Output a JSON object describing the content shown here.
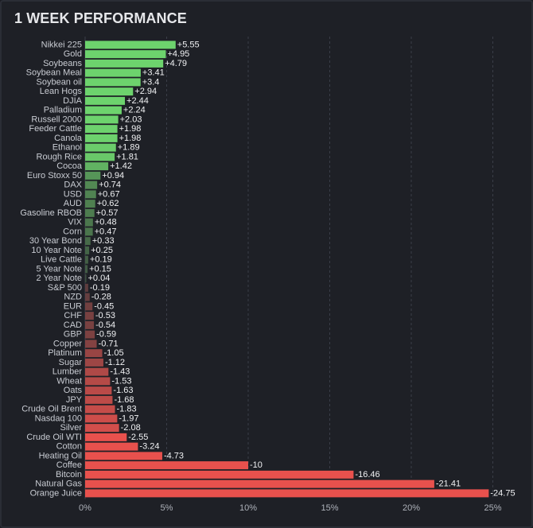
{
  "title": "1 WEEK PERFORMANCE",
  "chart_data": {
    "type": "bar",
    "orientation": "horizontal",
    "xlim": [
      0,
      30
    ],
    "xticks": [
      0,
      5,
      10,
      15,
      20,
      25
    ],
    "xtick_labels": [
      "0%",
      "5%",
      "10%",
      "15%",
      "20%",
      "25%"
    ],
    "bars_drawn_by_magnitude": true,
    "colors": {
      "positive_strong": "#6dd36d",
      "positive_weak": "#3b4a3e",
      "negative_weak": "#4a3a3c",
      "negative_strong": "#e8514d"
    },
    "categories": [
      "Nikkei 225",
      "Gold",
      "Soybeans",
      "Soybean Meal",
      "Soybean oil",
      "Lean Hogs",
      "DJIA",
      "Palladium",
      "Russell 2000",
      "Feeder Cattle",
      "Canola",
      "Ethanol",
      "Rough Rice",
      "Cocoa",
      "Euro Stoxx 50",
      "DAX",
      "USD",
      "AUD",
      "Gasoline RBOB",
      "VIX",
      "Corn",
      "30 Year Bond",
      "10 Year Note",
      "Live Cattle",
      "5 Year Note",
      "2 Year Note",
      "S&P 500",
      "NZD",
      "EUR",
      "CHF",
      "CAD",
      "GBP",
      "Copper",
      "Platinum",
      "Sugar",
      "Lumber",
      "Wheat",
      "Oats",
      "JPY",
      "Crude Oil Brent",
      "Nasdaq 100",
      "Silver",
      "Crude Oil WTI",
      "Cotton",
      "Heating Oil",
      "Coffee",
      "Bitcoin",
      "Natural Gas",
      "Orange Juice"
    ],
    "values": [
      5.55,
      4.95,
      4.79,
      3.41,
      3.4,
      2.94,
      2.44,
      2.24,
      2.03,
      1.98,
      1.98,
      1.89,
      1.81,
      1.42,
      0.94,
      0.74,
      0.67,
      0.62,
      0.57,
      0.48,
      0.47,
      0.33,
      0.25,
      0.19,
      0.15,
      0.04,
      -0.19,
      -0.28,
      -0.45,
      -0.53,
      -0.54,
      -0.59,
      -0.71,
      -1.05,
      -1.12,
      -1.43,
      -1.53,
      -1.63,
      -1.68,
      -1.83,
      -1.97,
      -2.08,
      -2.55,
      -3.24,
      -4.73,
      -10,
      -16.46,
      -21.41,
      -24.75
    ],
    "value_labels": [
      "+5.55",
      "+4.95",
      "+4.79",
      "+3.41",
      "+3.4",
      "+2.94",
      "+2.44",
      "+2.24",
      "+2.03",
      "+1.98",
      "+1.98",
      "+1.89",
      "+1.81",
      "+1.42",
      "+0.94",
      "+0.74",
      "+0.67",
      "+0.62",
      "+0.57",
      "+0.48",
      "+0.47",
      "+0.33",
      "+0.25",
      "+0.19",
      "+0.15",
      "+0.04",
      "-0.19",
      "-0.28",
      "-0.45",
      "-0.53",
      "-0.54",
      "-0.59",
      "-0.71",
      "-1.05",
      "-1.12",
      "-1.43",
      "-1.53",
      "-1.63",
      "-1.68",
      "-1.83",
      "-1.97",
      "-2.08",
      "-2.55",
      "-3.24",
      "-4.73",
      "-10",
      "-16.46",
      "-21.41",
      "-24.75"
    ],
    "grid": "vertical-dashed"
  }
}
